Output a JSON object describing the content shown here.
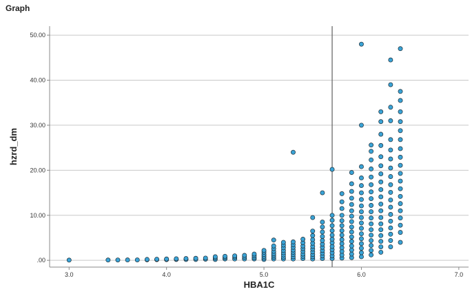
{
  "page_label": "Graph",
  "colors": {
    "point_fill": "#3aa3d6",
    "point_stroke": "#1c2a33",
    "gridline": "#c8c8c8",
    "axis": "#888888",
    "reference_line": "#6a6a6a"
  },
  "chart_data": {
    "type": "scatter",
    "title": "",
    "xlabel": "HBA1C",
    "ylabel": "hzrd_dm",
    "xlim": [
      2.8,
      7.1
    ],
    "ylim": [
      -1.5,
      52
    ],
    "x_ticks": [
      3.0,
      4.0,
      5.0,
      6.0,
      7.0
    ],
    "x_tick_labels": [
      "3.0",
      "4.0",
      "5.0",
      "6.0",
      "7.0"
    ],
    "y_ticks": [
      0,
      10,
      20,
      30,
      40,
      50
    ],
    "y_tick_labels": [
      ".00",
      "10.00",
      "20.00",
      "30.00",
      "40.00",
      "50.00"
    ],
    "grid": "horizontal",
    "reference_line_x": 5.7,
    "points": [
      [
        3.0,
        0.05
      ],
      [
        3.4,
        0.07
      ],
      [
        3.5,
        0.08
      ],
      [
        3.6,
        0.09
      ],
      [
        3.7,
        0.1
      ],
      [
        3.8,
        0.12
      ],
      [
        3.8,
        0.2
      ],
      [
        3.9,
        0.15
      ],
      [
        3.9,
        0.25
      ],
      [
        4.0,
        0.15
      ],
      [
        4.0,
        0.3
      ],
      [
        4.1,
        0.2
      ],
      [
        4.1,
        0.35
      ],
      [
        4.2,
        0.2
      ],
      [
        4.2,
        0.4
      ],
      [
        4.3,
        0.2
      ],
      [
        4.3,
        0.45
      ],
      [
        4.4,
        0.25
      ],
      [
        4.4,
        0.5
      ],
      [
        4.5,
        0.2
      ],
      [
        4.5,
        0.5
      ],
      [
        4.5,
        0.8
      ],
      [
        4.6,
        0.3
      ],
      [
        4.6,
        0.6
      ],
      [
        4.6,
        0.9
      ],
      [
        4.7,
        0.3
      ],
      [
        4.7,
        0.7
      ],
      [
        4.7,
        1.0
      ],
      [
        4.8,
        0.3
      ],
      [
        4.8,
        0.7
      ],
      [
        4.8,
        1.1
      ],
      [
        4.9,
        0.3
      ],
      [
        4.9,
        0.6
      ],
      [
        4.9,
        1.0
      ],
      [
        4.9,
        1.4
      ],
      [
        5.0,
        0.2
      ],
      [
        5.0,
        0.5
      ],
      [
        5.0,
        0.9
      ],
      [
        5.0,
        1.3
      ],
      [
        5.0,
        1.8
      ],
      [
        5.0,
        2.2
      ],
      [
        5.1,
        0.3
      ],
      [
        5.1,
        0.7
      ],
      [
        5.1,
        1.1
      ],
      [
        5.1,
        1.5
      ],
      [
        5.1,
        2.0
      ],
      [
        5.1,
        2.6
      ],
      [
        5.1,
        3.2
      ],
      [
        5.1,
        4.5
      ],
      [
        5.2,
        0.3
      ],
      [
        5.2,
        0.7
      ],
      [
        5.2,
        1.2
      ],
      [
        5.2,
        1.7
      ],
      [
        5.2,
        2.2
      ],
      [
        5.2,
        2.8
      ],
      [
        5.2,
        3.4
      ],
      [
        5.2,
        4.0
      ],
      [
        5.3,
        0.3
      ],
      [
        5.3,
        0.8
      ],
      [
        5.3,
        1.3
      ],
      [
        5.3,
        1.8
      ],
      [
        5.3,
        2.3
      ],
      [
        5.3,
        2.9
      ],
      [
        5.3,
        3.5
      ],
      [
        5.3,
        4.1
      ],
      [
        5.3,
        24.0
      ],
      [
        5.4,
        0.4
      ],
      [
        5.4,
        0.9
      ],
      [
        5.4,
        1.4
      ],
      [
        5.4,
        2.0
      ],
      [
        5.4,
        2.6
      ],
      [
        5.4,
        3.2
      ],
      [
        5.4,
        3.9
      ],
      [
        5.4,
        4.7
      ],
      [
        5.5,
        0.3
      ],
      [
        5.5,
        0.8
      ],
      [
        5.5,
        1.3
      ],
      [
        5.5,
        1.9
      ],
      [
        5.5,
        2.5
      ],
      [
        5.5,
        3.1
      ],
      [
        5.5,
        3.8
      ],
      [
        5.5,
        4.6
      ],
      [
        5.5,
        5.5
      ],
      [
        5.5,
        6.5
      ],
      [
        5.5,
        9.5
      ],
      [
        5.6,
        0.4
      ],
      [
        5.6,
        1.0
      ],
      [
        5.6,
        1.6
      ],
      [
        5.6,
        2.2
      ],
      [
        5.6,
        2.9
      ],
      [
        5.6,
        3.6
      ],
      [
        5.6,
        4.4
      ],
      [
        5.6,
        5.3
      ],
      [
        5.6,
        6.3
      ],
      [
        5.6,
        7.4
      ],
      [
        5.6,
        8.5
      ],
      [
        5.6,
        15.0
      ],
      [
        5.7,
        0.4
      ],
      [
        5.7,
        1.0
      ],
      [
        5.7,
        1.7
      ],
      [
        5.7,
        2.4
      ],
      [
        5.7,
        3.1
      ],
      [
        5.7,
        3.9
      ],
      [
        5.7,
        4.7
      ],
      [
        5.7,
        5.6
      ],
      [
        5.7,
        6.6
      ],
      [
        5.7,
        7.7
      ],
      [
        5.7,
        8.9
      ],
      [
        5.7,
        10.0
      ],
      [
        5.7,
        20.2
      ],
      [
        5.8,
        0.5
      ],
      [
        5.8,
        1.2
      ],
      [
        5.8,
        2.0
      ],
      [
        5.8,
        2.8
      ],
      [
        5.8,
        3.7
      ],
      [
        5.8,
        4.6
      ],
      [
        5.8,
        5.6
      ],
      [
        5.8,
        6.6
      ],
      [
        5.8,
        7.7
      ],
      [
        5.8,
        8.8
      ],
      [
        5.8,
        10.0
      ],
      [
        5.8,
        11.5
      ],
      [
        5.8,
        13.0
      ],
      [
        5.8,
        14.8
      ],
      [
        5.9,
        0.6
      ],
      [
        5.9,
        1.4
      ],
      [
        5.9,
        2.3
      ],
      [
        5.9,
        3.2
      ],
      [
        5.9,
        4.2
      ],
      [
        5.9,
        5.2
      ],
      [
        5.9,
        6.3
      ],
      [
        5.9,
        7.4
      ],
      [
        5.9,
        8.6
      ],
      [
        5.9,
        9.8
      ],
      [
        5.9,
        11.0
      ],
      [
        5.9,
        12.4
      ],
      [
        5.9,
        13.8
      ],
      [
        5.9,
        15.3
      ],
      [
        5.9,
        17.0
      ],
      [
        5.9,
        19.5
      ],
      [
        6.0,
        0.8
      ],
      [
        6.0,
        1.7
      ],
      [
        6.0,
        2.7
      ],
      [
        6.0,
        3.7
      ],
      [
        6.0,
        4.8
      ],
      [
        6.0,
        5.9
      ],
      [
        6.0,
        7.1
      ],
      [
        6.0,
        8.3
      ],
      [
        6.0,
        9.5
      ],
      [
        6.0,
        10.8
      ],
      [
        6.0,
        12.1
      ],
      [
        6.0,
        13.5
      ],
      [
        6.0,
        15.0
      ],
      [
        6.0,
        16.6
      ],
      [
        6.0,
        18.3
      ],
      [
        6.0,
        20.8
      ],
      [
        6.0,
        30.0
      ],
      [
        6.0,
        48.0
      ],
      [
        6.1,
        1.2
      ],
      [
        6.1,
        2.2
      ],
      [
        6.1,
        3.3
      ],
      [
        6.1,
        4.4
      ],
      [
        6.1,
        5.6
      ],
      [
        6.1,
        6.8
      ],
      [
        6.1,
        8.1
      ],
      [
        6.1,
        9.4
      ],
      [
        6.1,
        10.8
      ],
      [
        6.1,
        12.2
      ],
      [
        6.1,
        13.7
      ],
      [
        6.1,
        15.2
      ],
      [
        6.1,
        16.8
      ],
      [
        6.1,
        18.5
      ],
      [
        6.1,
        20.3
      ],
      [
        6.1,
        22.3
      ],
      [
        6.1,
        24.2
      ],
      [
        6.1,
        25.6
      ],
      [
        6.2,
        1.8
      ],
      [
        6.2,
        3.0
      ],
      [
        6.2,
        4.2
      ],
      [
        6.2,
        5.5
      ],
      [
        6.2,
        6.8
      ],
      [
        6.2,
        8.1
      ],
      [
        6.2,
        9.5
      ],
      [
        6.2,
        11.0
      ],
      [
        6.2,
        12.5
      ],
      [
        6.2,
        14.1
      ],
      [
        6.2,
        15.7
      ],
      [
        6.2,
        17.4
      ],
      [
        6.2,
        19.2
      ],
      [
        6.2,
        21.0
      ],
      [
        6.2,
        23.0
      ],
      [
        6.2,
        25.5
      ],
      [
        6.2,
        28.0
      ],
      [
        6.2,
        30.8
      ],
      [
        6.2,
        33.0
      ],
      [
        6.3,
        3.0
      ],
      [
        6.3,
        4.4
      ],
      [
        6.3,
        5.8
      ],
      [
        6.3,
        7.2
      ],
      [
        6.3,
        8.7
      ],
      [
        6.3,
        10.2
      ],
      [
        6.3,
        11.8
      ],
      [
        6.3,
        13.4
      ],
      [
        6.3,
        15.1
      ],
      [
        6.3,
        16.8
      ],
      [
        6.3,
        18.6
      ],
      [
        6.3,
        20.5
      ],
      [
        6.3,
        22.5
      ],
      [
        6.3,
        24.5
      ],
      [
        6.3,
        26.8
      ],
      [
        6.3,
        31.0
      ],
      [
        6.3,
        34.0
      ],
      [
        6.3,
        39.0
      ],
      [
        6.3,
        44.5
      ],
      [
        6.4,
        4.0
      ],
      [
        6.4,
        6.2
      ],
      [
        6.4,
        7.8
      ],
      [
        6.4,
        9.4
      ],
      [
        6.4,
        11.0
      ],
      [
        6.4,
        12.6
      ],
      [
        6.4,
        14.2
      ],
      [
        6.4,
        15.9
      ],
      [
        6.4,
        17.6
      ],
      [
        6.4,
        19.3
      ],
      [
        6.4,
        21.1
      ],
      [
        6.4,
        22.9
      ],
      [
        6.4,
        24.8
      ],
      [
        6.4,
        26.8
      ],
      [
        6.4,
        28.8
      ],
      [
        6.4,
        30.8
      ],
      [
        6.4,
        33.0
      ],
      [
        6.4,
        35.5
      ],
      [
        6.4,
        37.5
      ],
      [
        6.4,
        47.0
      ]
    ]
  }
}
